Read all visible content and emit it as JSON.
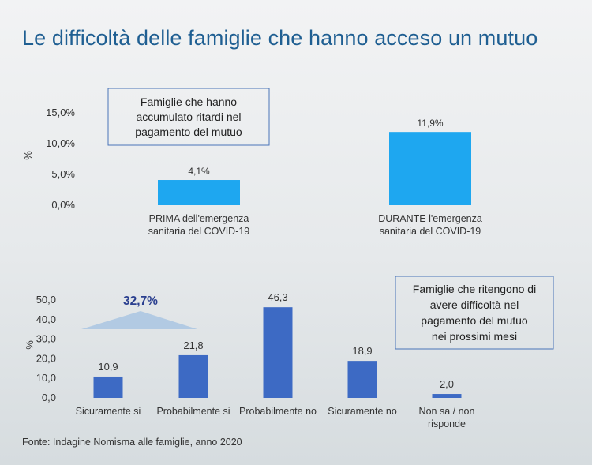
{
  "title": "Le difficoltà delle famiglie che hanno acceso un mutuo",
  "source": "Fonte: Indagine Nomisma alle famiglie, anno 2020",
  "chart_data": [
    {
      "type": "bar",
      "ylabel": "%",
      "ylim": [
        0,
        15
      ],
      "y_ticks": [
        "0,0%",
        "5,0%",
        "10,0%",
        "15,0%"
      ],
      "categories": [
        [
          "PRIMA dell'emergenza",
          "sanitaria del COVID-19"
        ],
        [
          "DURANTE l'emergenza",
          "sanitaria del COVID-19"
        ]
      ],
      "values": [
        4.1,
        11.9
      ],
      "data_labels": [
        "4,1%",
        "11,9%"
      ],
      "box_text": [
        "Famiglie che hanno",
        "accumulato ritardi nel",
        "pagamento del mutuo"
      ],
      "bar_color": "#1ea7f0"
    },
    {
      "type": "bar",
      "ylabel": "%",
      "ylim": [
        0,
        50
      ],
      "y_ticks": [
        "0,0",
        "10,0",
        "20,0",
        "30,0",
        "40,0",
        "50,0"
      ],
      "categories": [
        [
          "Sicuramente si"
        ],
        [
          "Probabilmente si"
        ],
        [
          "Probabilmente no"
        ],
        [
          "Sicuramente no"
        ],
        [
          "Non sa / non",
          "risponde"
        ]
      ],
      "values": [
        10.9,
        21.8,
        46.3,
        18.9,
        2.0
      ],
      "data_labels": [
        "10,9",
        "21,8",
        "46,3",
        "18,9",
        "2,0"
      ],
      "box_text": [
        "Famiglie che ritengono di",
        "avere difficoltà nel",
        "pagamento del mutuo",
        "nei prossimi mesi"
      ],
      "highlight": "32,7%",
      "bar_color": "#3d6ac4"
    }
  ]
}
